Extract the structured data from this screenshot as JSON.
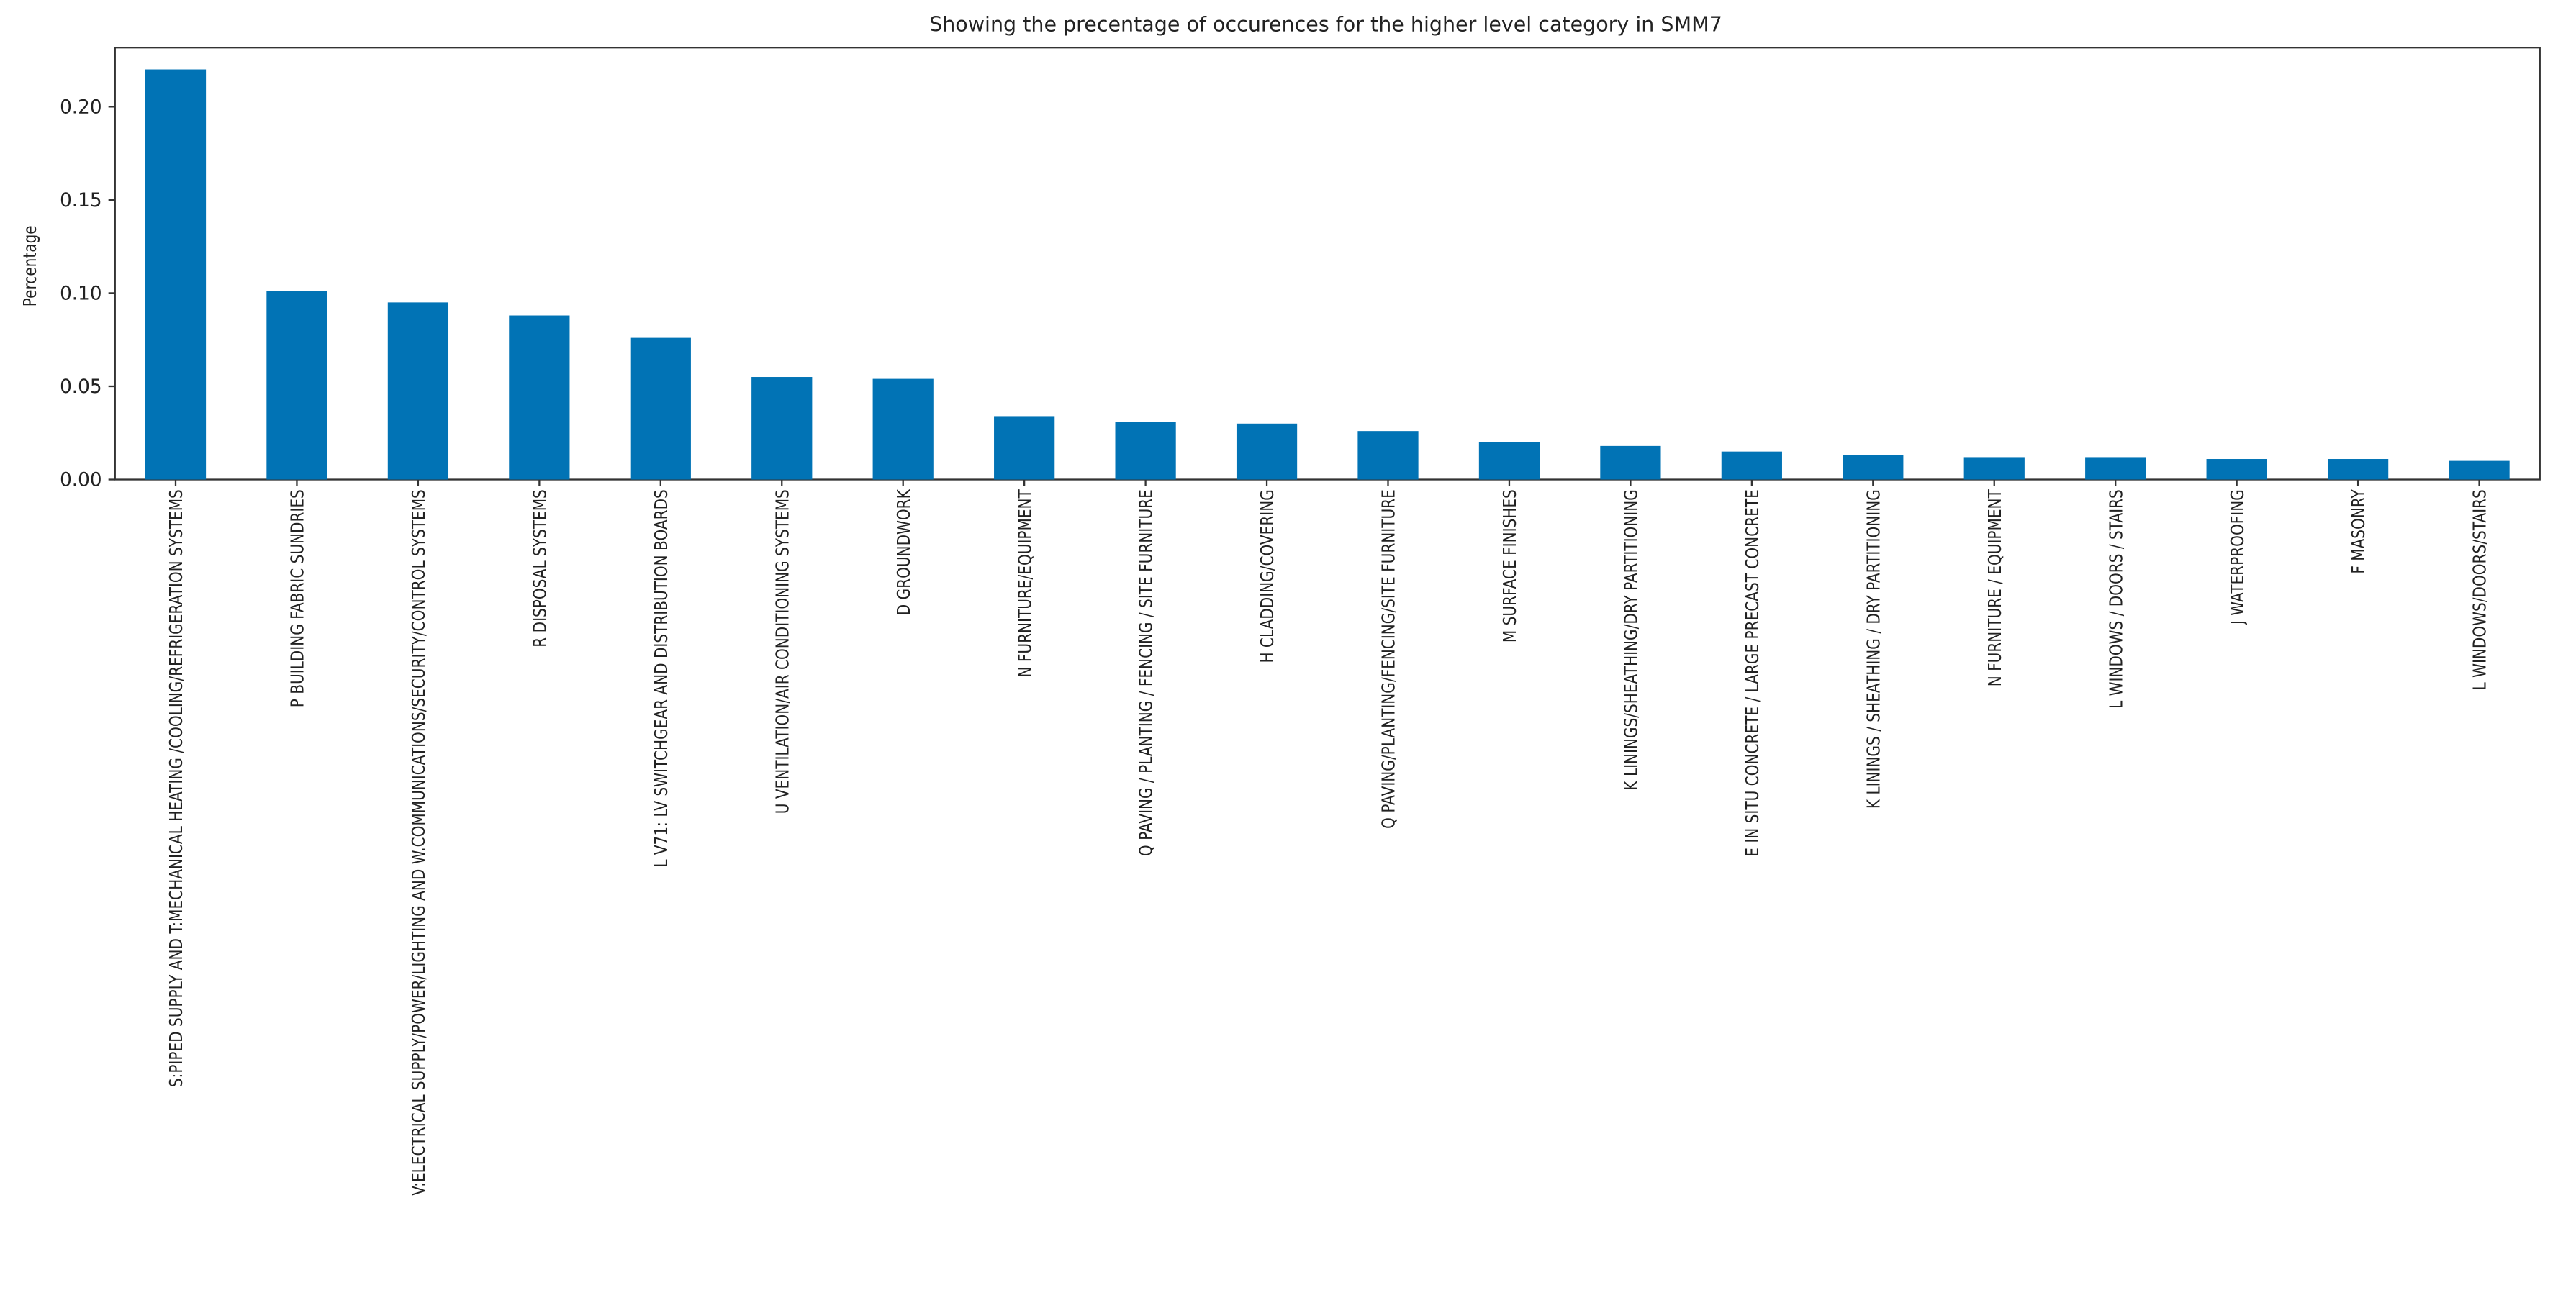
{
  "chart_data": {
    "type": "bar",
    "title": "Showing the precentage of occurences for the higher level category in SMM7",
    "ylabel": "Percentage",
    "color": "#0173b5",
    "categories": [
      "S:PIPED SUPPLY AND T:MECHANICAL HEATING /COOLING/REFRIGERATION SYSTEMS",
      "P BUILDING FABRIC SUNDRIES",
      "V:ELECTRICAL SUPPLY/POWER/LIGHTING AND W.COMMUNICATIONS/SECURITY/CONTROL SYSTEMS",
      "R DISPOSAL SYSTEMS",
      "L V71: LV SWITCHGEAR AND DISTRIBUTION BOARDS",
      "U VENTILATION/AIR CONDITIONING SYSTEMS",
      "D GROUNDWORK",
      "N FURNITURE/EQUIPMENT",
      "Q PAVING / PLANTING / FENCING / SITE FURNITURE",
      "H CLADDING/COVERING",
      "Q PAVING/PLANTING/FENCING/SITE FURNITURE",
      "M SURFACE FINISHES",
      "K LININGS/SHEATHING/DRY PARTITIONING",
      "E IN SITU CONCRETE / LARGE PRECAST CONCRETE",
      "K LININGS / SHEATHING / DRY PARTITIONING",
      "N FURNITURE / EQUIPMENT",
      "L WINDOWS / DOORS / STAIRS",
      "J WATERPROOFING",
      "F MASONRY",
      "L WINDOWS/DOORS/STAIRS"
    ],
    "values": [
      0.22,
      0.101,
      0.095,
      0.088,
      0.076,
      0.055,
      0.054,
      0.034,
      0.031,
      0.03,
      0.026,
      0.02,
      0.018,
      0.015,
      0.013,
      0.012,
      0.012,
      0.011,
      0.011,
      0.01
    ],
    "ylim": [
      0,
      0.2317
    ],
    "yticks": [
      {
        "value": 0,
        "label": "0.00"
      },
      {
        "value": 0.05,
        "label": "0.05"
      },
      {
        "value": 0.1,
        "label": "0.10"
      },
      {
        "value": 0.15,
        "label": "0.15"
      },
      {
        "value": 0.2,
        "label": "0.20"
      }
    ],
    "grid": false
  }
}
